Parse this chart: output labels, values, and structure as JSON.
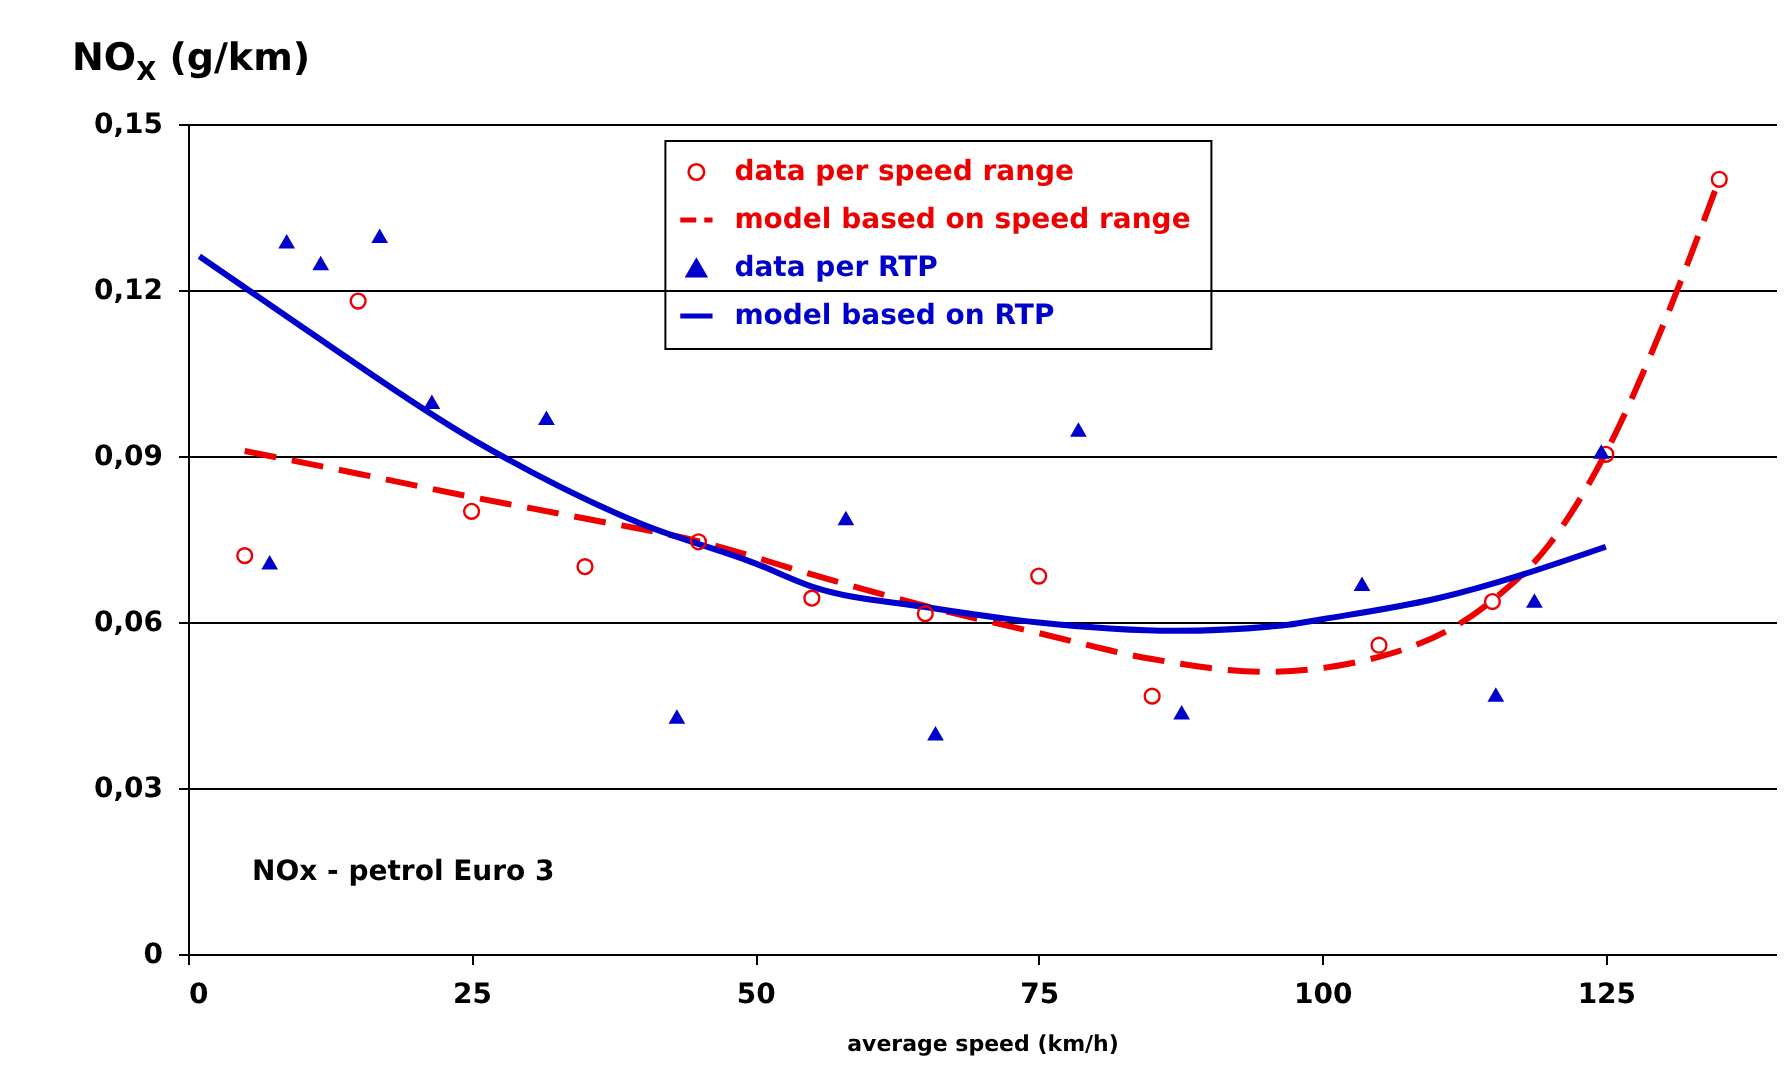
{
  "chart_data": {
    "type": "scatter",
    "ylabel": "NO$_{X}$ (g/km)",
    "xlabel": "average speed (km/h)",
    "xlim": [
      0,
      140
    ],
    "xticks": [
      0,
      25,
      50,
      75,
      100,
      125
    ],
    "ylim": [
      0,
      0.15
    ],
    "yticks": [
      {
        "value": 0,
        "label": "0"
      },
      {
        "value": 0.03,
        "label": "0,03"
      },
      {
        "value": 0.06,
        "label": "0,06"
      },
      {
        "value": 0.09,
        "label": "0,09"
      },
      {
        "value": 0.12,
        "label": "0,12"
      },
      {
        "value": 0.15,
        "label": "0,15"
      }
    ],
    "grid": "y",
    "legend": "top right",
    "annotations": [
      "NOx - petrol Euro 3"
    ],
    "series": [
      {
        "name": "data per speed range",
        "type": "scatter",
        "marker": "circle",
        "color": "#ee0000",
        "x": [
          5,
          15,
          25,
          35,
          45,
          55,
          65,
          75,
          85,
          105,
          115,
          125,
          135
        ],
        "values": [
          0.072,
          0.118,
          0.08,
          0.07,
          0.0745,
          0.0643,
          0.0615,
          0.0683,
          0.0466,
          0.0558,
          0.0637,
          0.0903,
          0.14
        ]
      },
      {
        "name": "model based on speed range",
        "type": "line",
        "line_style": "dashed",
        "color": "#ee0000",
        "x": [
          5,
          15,
          25,
          35,
          45,
          55,
          65,
          75,
          85,
          95,
          105,
          115,
          120,
          125,
          130,
          135
        ],
        "values": [
          0.0909,
          0.0868,
          0.0826,
          0.0787,
          0.0746,
          0.0686,
          0.0629,
          0.058,
          0.0533,
          0.051,
          0.0537,
          0.0639,
          0.074,
          0.0906,
          0.1134,
          0.14
        ]
      },
      {
        "name": "data per RTP",
        "type": "scatter",
        "marker": "triangle",
        "color": "#0000cc",
        "x": [
          7.2,
          8.7,
          11.7,
          16.9,
          21.5,
          31.6,
          43.1,
          58,
          65.9,
          78.5,
          87.6,
          103.5,
          115.3,
          118.7,
          124.6
        ],
        "values": [
          0.0708,
          0.1288,
          0.1249,
          0.1298,
          0.0998,
          0.0969,
          0.0429,
          0.0788,
          0.0399,
          0.0948,
          0.0437,
          0.0669,
          0.0469,
          0.0639,
          0.0908
        ]
      },
      {
        "name": "model based on RTP",
        "type": "line",
        "line_style": "solid",
        "color": "#0000cc",
        "x": [
          1,
          10,
          25,
          40,
          50,
          55,
          65,
          75,
          87,
          97,
          100,
          110,
          125
        ],
        "values": [
          0.1261,
          0.1134,
          0.0931,
          0.0777,
          0.0706,
          0.0664,
          0.0627,
          0.0599,
          0.0584,
          0.0595,
          0.0605,
          0.0642,
          0.0736
        ]
      }
    ]
  }
}
